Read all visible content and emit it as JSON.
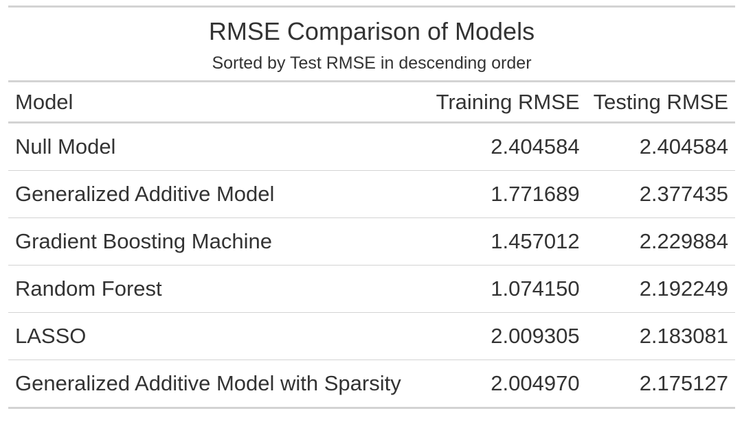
{
  "table": {
    "title": "RMSE Comparison of Models",
    "subtitle": "Sorted by Test RMSE in descending order",
    "columns": [
      "Model",
      "Training RMSE",
      "Testing RMSE"
    ],
    "rows": [
      {
        "model": "Null Model",
        "train": "2.404584",
        "test": "2.404584"
      },
      {
        "model": "Generalized Additive Model",
        "train": "1.771689",
        "test": "2.377435"
      },
      {
        "model": "Gradient Boosting Machine",
        "train": "1.457012",
        "test": "2.229884"
      },
      {
        "model": "Random Forest",
        "train": "1.074150",
        "test": "2.192249"
      },
      {
        "model": "LASSO",
        "train": "2.009305",
        "test": "2.183081"
      },
      {
        "model": "Generalized Additive Model with Sparsity",
        "train": "2.004970",
        "test": "2.175127"
      }
    ]
  }
}
